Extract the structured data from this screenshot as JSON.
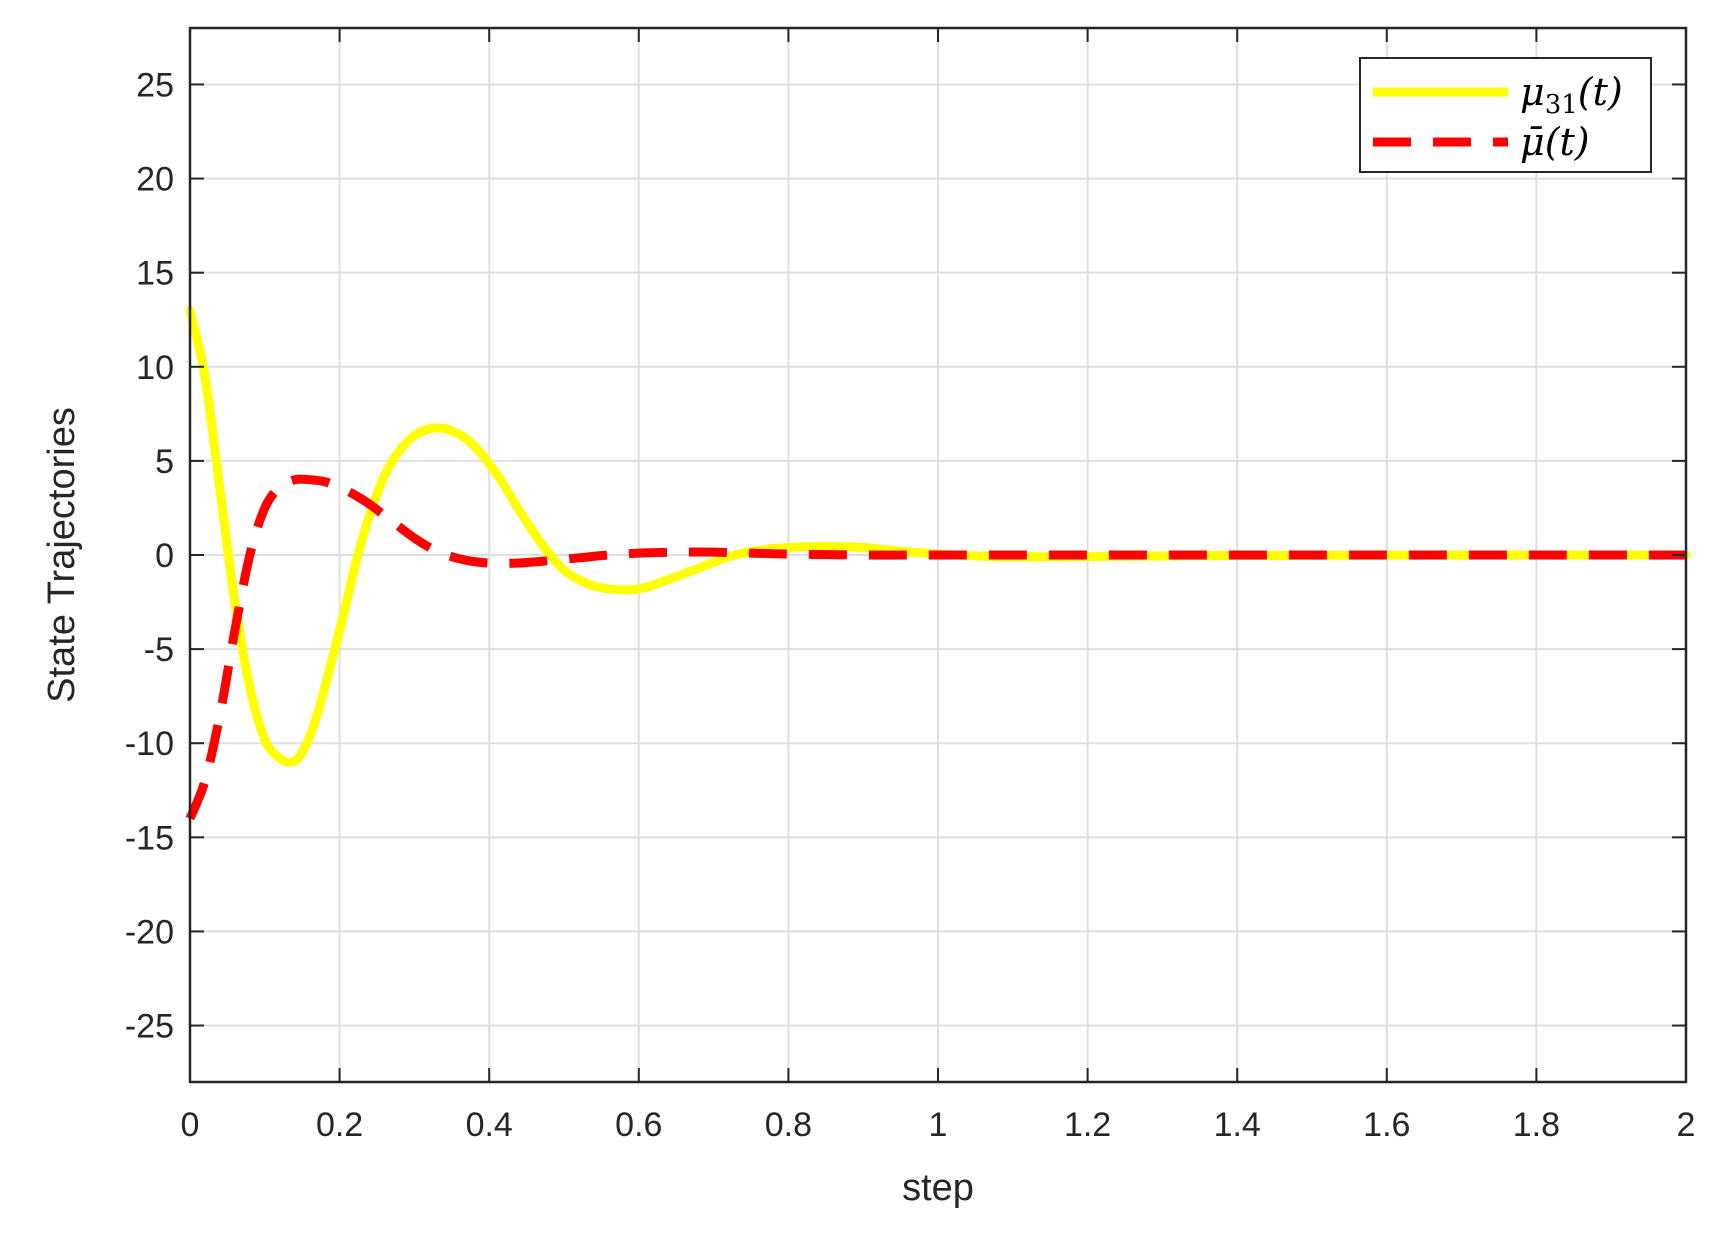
{
  "chart_data": {
    "type": "line",
    "title": "",
    "xlabel": "step",
    "ylabel": "State Trajectories",
    "xlim": [
      0,
      2
    ],
    "ylim": [
      -28,
      28
    ],
    "xticks": [
      0,
      0.2,
      0.4,
      0.6,
      0.8,
      1,
      1.2,
      1.4,
      1.6,
      1.8,
      2
    ],
    "xtick_labels": [
      "0",
      "0.2",
      "0.4",
      "0.6",
      "0.8",
      "1",
      "1.2",
      "1.4",
      "1.6",
      "1.8",
      "2"
    ],
    "yticks": [
      -25,
      -20,
      -15,
      -10,
      -5,
      0,
      5,
      10,
      15,
      20,
      25
    ],
    "ytick_labels": [
      "-25",
      "-20",
      "-15",
      "-10",
      "-5",
      "0",
      "5",
      "10",
      "15",
      "20",
      "25"
    ],
    "grid": true,
    "legend_position": "top-right",
    "series": [
      {
        "name": "μ31(t)",
        "legend_main": "μ",
        "legend_sub": "31",
        "legend_tail": "(t)",
        "color": "#ffff00",
        "style": "solid",
        "x": [
          0,
          0.02,
          0.04,
          0.06,
          0.08,
          0.1,
          0.12,
          0.135,
          0.15,
          0.17,
          0.2,
          0.23,
          0.26,
          0.29,
          0.32,
          0.35,
          0.38,
          0.41,
          0.44,
          0.47,
          0.5,
          0.53,
          0.56,
          0.6,
          0.64,
          0.68,
          0.72,
          0.76,
          0.8,
          0.85,
          0.9,
          0.95,
          1,
          1.05,
          1.1,
          1.2,
          1.3,
          1.4,
          1.6,
          1.8,
          2
        ],
        "y": [
          13,
          9.5,
          3.5,
          -2.5,
          -7,
          -9.8,
          -10.8,
          -11,
          -10.5,
          -8.5,
          -4,
          0.8,
          4.2,
          6,
          6.7,
          6.6,
          5.8,
          4.3,
          2.4,
          0.6,
          -0.8,
          -1.5,
          -1.8,
          -1.8,
          -1.3,
          -0.7,
          -0.1,
          0.25,
          0.4,
          0.45,
          0.4,
          0.2,
          0.05,
          -0.05,
          -0.1,
          -0.08,
          -0.05,
          -0.03,
          -0.01,
          0,
          0
        ]
      },
      {
        "name": "μ̄(t)",
        "legend_main": "μ̄",
        "legend_sub": "",
        "legend_tail": "(t)",
        "color": "#ff0000",
        "style": "dashed",
        "x": [
          0,
          0.02,
          0.04,
          0.06,
          0.08,
          0.1,
          0.12,
          0.14,
          0.16,
          0.18,
          0.2,
          0.22,
          0.24,
          0.27,
          0.3,
          0.33,
          0.36,
          0.39,
          0.42,
          0.45,
          0.48,
          0.52,
          0.56,
          0.6,
          0.65,
          0.7,
          0.75,
          0.8,
          0.9,
          1,
          1.2,
          1.4,
          1.6,
          1.8,
          2
        ],
        "y": [
          -14,
          -12,
          -8.5,
          -4,
          0,
          2.5,
          3.6,
          4,
          4,
          3.9,
          3.6,
          3.2,
          2.7,
          1.8,
          0.9,
          0.2,
          -0.2,
          -0.4,
          -0.45,
          -0.4,
          -0.3,
          -0.15,
          0,
          0.1,
          0.15,
          0.15,
          0.1,
          0.05,
          0,
          0,
          0,
          0,
          0,
          0,
          0
        ]
      }
    ]
  }
}
